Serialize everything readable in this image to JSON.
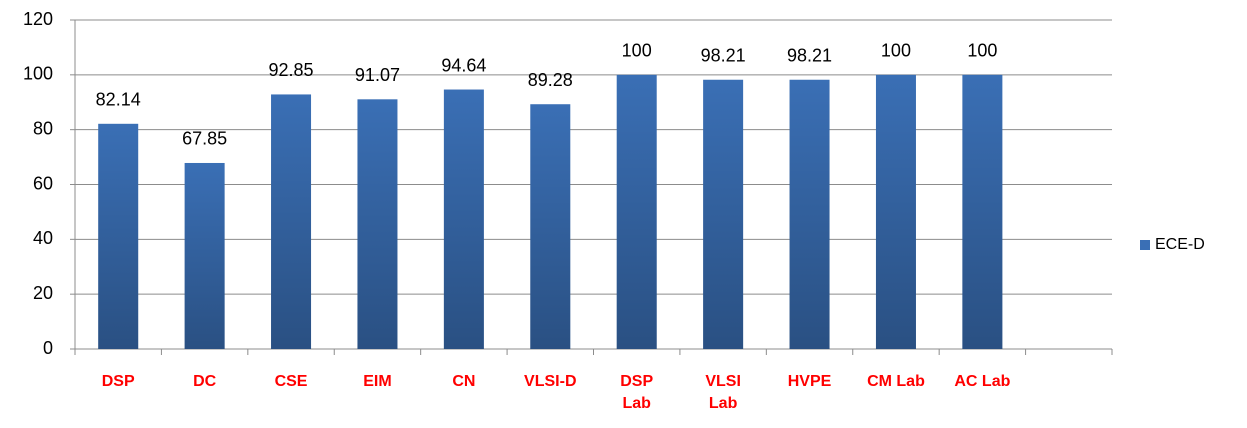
{
  "chart_data": {
    "type": "bar",
    "categories": [
      "DSP",
      "DC",
      "CSE",
      "EIM",
      "CN",
      "VLSI-D",
      "DSP Lab",
      "VLSI Lab",
      "HVPE",
      "CM Lab",
      "AC Lab",
      null
    ],
    "series": [
      {
        "name": "ECE-D",
        "color": "#3a6fb5",
        "values": [
          82.14,
          67.85,
          92.85,
          91.07,
          94.64,
          89.28,
          100,
          98.21,
          98.21,
          100,
          100,
          null
        ]
      }
    ],
    "ylim": [
      0,
      120
    ],
    "yticks": [
      0,
      20,
      40,
      60,
      80,
      100,
      120
    ],
    "grid": true,
    "legend": "right"
  }
}
